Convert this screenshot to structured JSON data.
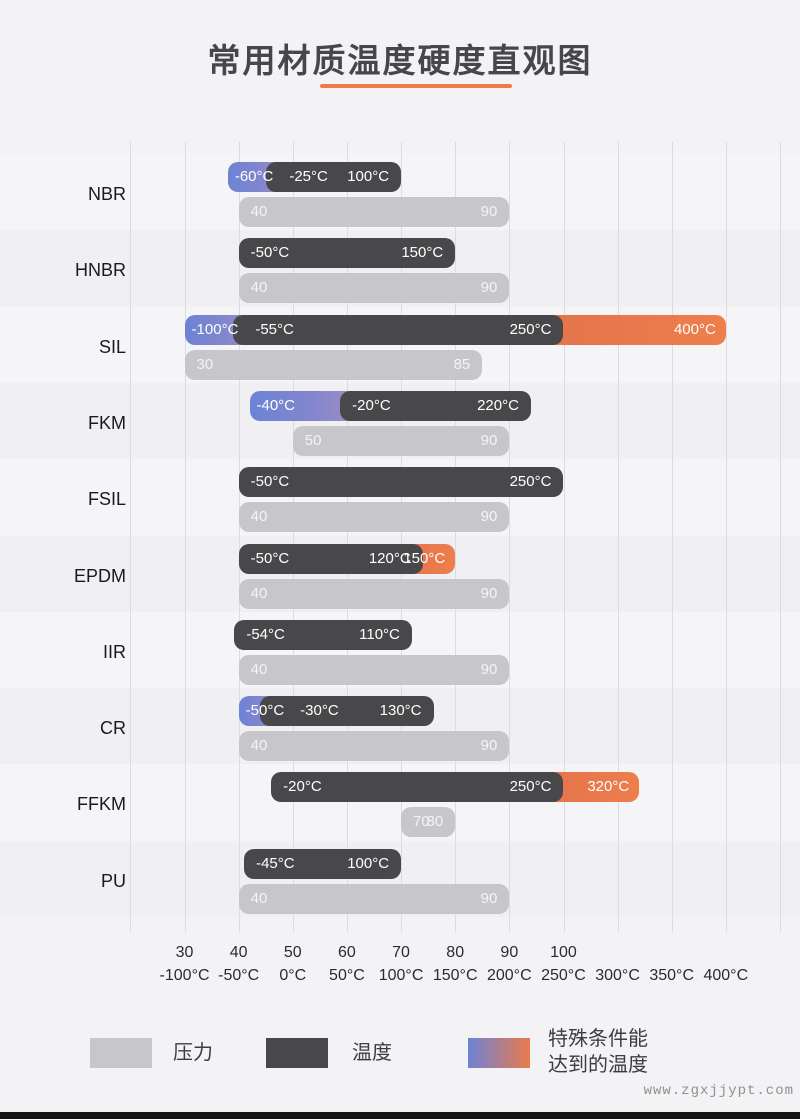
{
  "title": "常用材质温度硬度直观图",
  "watermark": "www.zgxjjypt.com",
  "legend": {
    "items": [
      {
        "label": "压力",
        "type": "pressure"
      },
      {
        "label": "温度",
        "type": "temperature"
      },
      {
        "label": "特殊条件能\n达到的温度",
        "type": "special"
      }
    ]
  },
  "colors": {
    "background": "#f3f3f5",
    "band_light": "#f5f5f7",
    "band_dark": "#f0f0f3",
    "gridline": "#dcdce0",
    "temperature_bar": "#48484b",
    "pressure_bar": "#c7c7cb",
    "special_low_start": "#6d83d6",
    "special_low_end": "#a18cc4",
    "special_high": "#ea7a4c",
    "accent_underline": "#ef7b4b"
  },
  "chart_data": {
    "type": "bar",
    "title": "常用材质温度硬度直观图",
    "legend_position": "bottom",
    "grid": true,
    "temperature_axis": {
      "unit": "°C",
      "range": [
        -100,
        400
      ],
      "ticks": [
        -100,
        -50,
        0,
        50,
        100,
        150,
        200,
        250,
        300,
        350,
        400
      ],
      "tick_labels": [
        "-100°C",
        "-50°C",
        "0°C",
        "50°C",
        "100°C",
        "150°C",
        "200°C",
        "250°C",
        "300°C",
        "350°C",
        "400°C"
      ]
    },
    "hardness_axis": {
      "range": [
        30,
        100
      ],
      "ticks": [
        30,
        40,
        50,
        60,
        70,
        80,
        90,
        100
      ],
      "tick_labels": [
        "30",
        "40",
        "50",
        "60",
        "70",
        "80",
        "90",
        "100"
      ]
    },
    "rows": [
      {
        "material": "NBR",
        "temperature": {
          "special_low": -60,
          "low": -25,
          "high": 100,
          "special_high": null,
          "special_low_label": "-60°C",
          "low_label": "-25°C",
          "high_label": "100°C",
          "special_high_label": null
        },
        "pressure": {
          "min": 40,
          "max": 90,
          "min_label": "40",
          "max_label": "90"
        },
        "wide_fade": false
      },
      {
        "material": "HNBR",
        "temperature": {
          "special_low": null,
          "low": -50,
          "high": 150,
          "special_high": null,
          "special_low_label": null,
          "low_label": "-50°C",
          "high_label": "150°C",
          "special_high_label": null
        },
        "pressure": {
          "min": 40,
          "max": 90,
          "min_label": "40",
          "max_label": "90"
        },
        "wide_fade": false
      },
      {
        "material": "SIL",
        "temperature": {
          "special_low": -100,
          "low": -55,
          "high": 250,
          "special_high": 400,
          "special_low_label": "-100°C",
          "low_label": "-55°C",
          "high_label": "250°C",
          "special_high_label": "400°C"
        },
        "pressure": {
          "min": 30,
          "max": 85,
          "min_label": "30",
          "max_label": "85"
        },
        "wide_fade": false
      },
      {
        "material": "FKM",
        "temperature": {
          "special_low": -40,
          "low": -20,
          "high": 220,
          "special_high": null,
          "special_low_label": "-40°C",
          "low_label": "-20°C",
          "high_label": "220°C",
          "special_high_label": null
        },
        "pressure": {
          "min": 50,
          "max": 90,
          "min_label": "50",
          "max_label": "90"
        },
        "wide_fade": true
      },
      {
        "material": "FSIL",
        "temperature": {
          "special_low": null,
          "low": -50,
          "high": 250,
          "special_high": null,
          "special_low_label": null,
          "low_label": "-50°C",
          "high_label": "250°C",
          "special_high_label": null
        },
        "pressure": {
          "min": 40,
          "max": 90,
          "min_label": "40",
          "max_label": "90"
        },
        "wide_fade": false
      },
      {
        "material": "EPDM",
        "temperature": {
          "special_low": null,
          "low": -50,
          "high": 120,
          "special_high": 150,
          "special_low_label": null,
          "low_label": "-50°C",
          "high_label": "120°C",
          "special_high_label": "150°C"
        },
        "pressure": {
          "min": 40,
          "max": 90,
          "min_label": "40",
          "max_label": "90"
        },
        "wide_fade": false
      },
      {
        "material": "IIR",
        "temperature": {
          "special_low": null,
          "low": -54,
          "high": 110,
          "special_high": null,
          "special_low_label": null,
          "low_label": "-54°C",
          "high_label": "110°C",
          "special_high_label": null
        },
        "pressure": {
          "min": 40,
          "max": 90,
          "min_label": "40",
          "max_label": "90"
        },
        "wide_fade": false
      },
      {
        "material": "CR",
        "temperature": {
          "special_low": -50,
          "low": -30,
          "high": 130,
          "special_high": null,
          "special_low_label": "-50°C",
          "low_label": "-30°C",
          "high_label": "130°C",
          "special_high_label": null
        },
        "pressure": {
          "min": 40,
          "max": 90,
          "min_label": "40",
          "max_label": "90"
        },
        "wide_fade": false
      },
      {
        "material": "FFKM",
        "temperature": {
          "special_low": null,
          "low": -20,
          "high": 250,
          "special_high": 320,
          "special_low_label": null,
          "low_label": "-20°C",
          "high_label": "250°C",
          "special_high_label": "320°C"
        },
        "pressure": {
          "min": 70,
          "max": 80,
          "min_label": "70",
          "max_label": "80"
        },
        "wide_fade": false
      },
      {
        "material": "PU",
        "temperature": {
          "special_low": null,
          "low": -45,
          "high": 100,
          "special_high": null,
          "special_low_label": null,
          "low_label": "-45°C",
          "high_label": "100°C",
          "special_high_label": null
        },
        "pressure": {
          "min": 40,
          "max": 90,
          "min_label": "40",
          "max_label": "90"
        },
        "wide_fade": false
      }
    ]
  }
}
